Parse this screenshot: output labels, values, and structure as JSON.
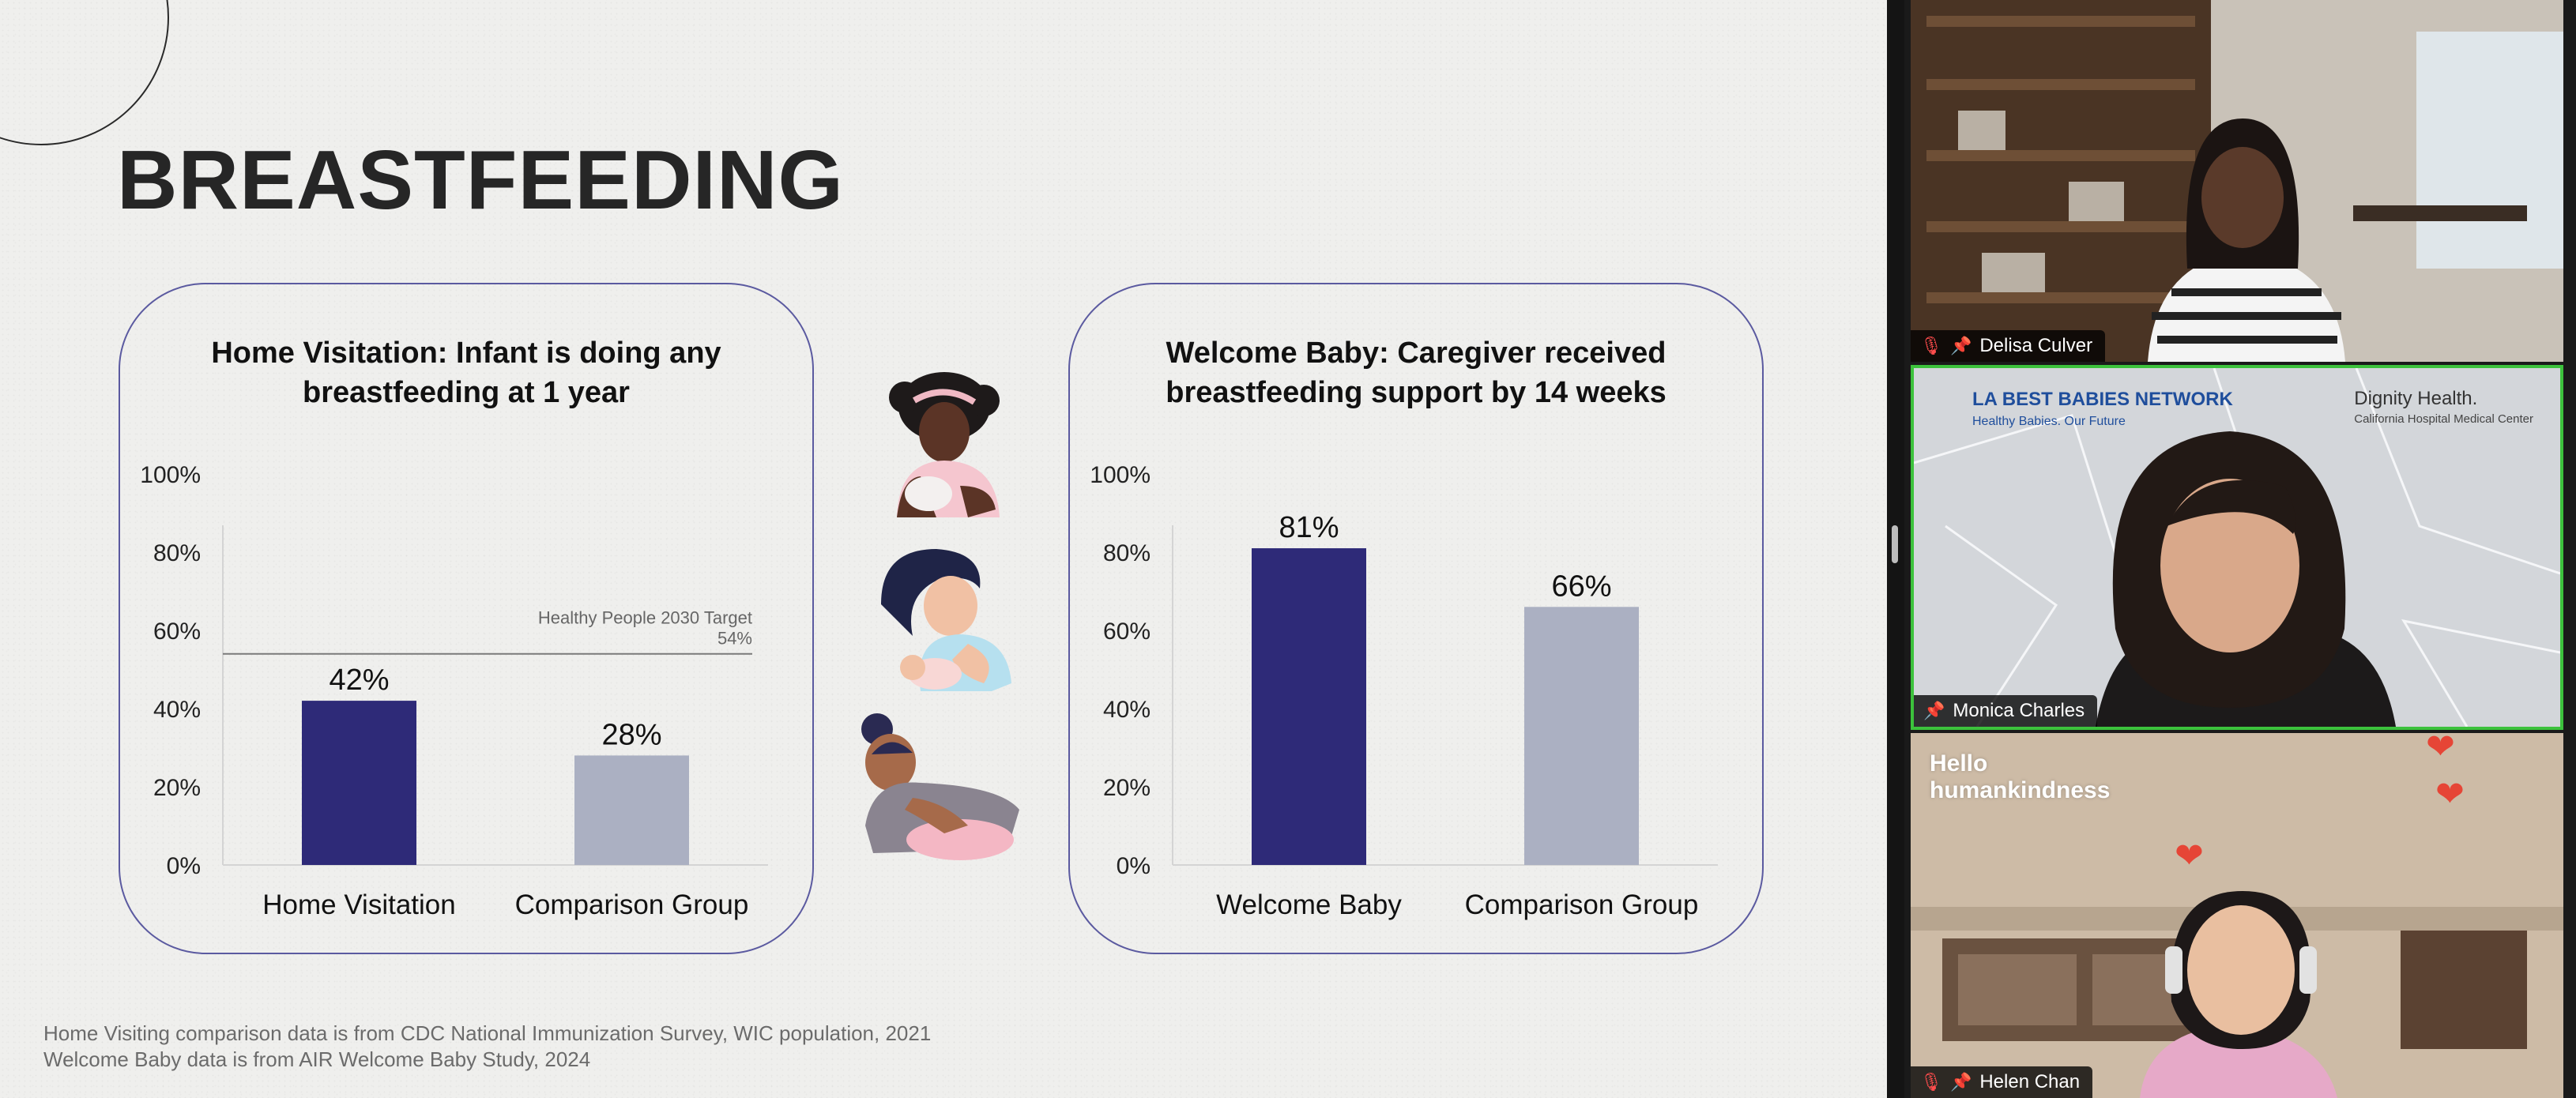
{
  "slide": {
    "title": "BREASTFEEDING",
    "footnotes": [
      "Home Visiting comparison data is from CDC National Immunization Survey, WIC population, 2021",
      "Welcome Baby data is from AIR Welcome Baby Study, 2024"
    ]
  },
  "chart_data": [
    {
      "type": "bar",
      "title": "Home Visitation: Infant is doing any breastfeeding at 1 year",
      "title_lines": [
        "Home Visitation: Infant is doing any",
        "breastfeeding at 1 year"
      ],
      "categories": [
        "Home Visitation",
        "Comparison Group"
      ],
      "values": [
        42,
        28
      ],
      "data_labels": [
        "42%",
        "28%"
      ],
      "bar_colors": [
        "#2e2a78",
        "#abb0c2"
      ],
      "ylim": [
        0,
        100
      ],
      "yticks": [
        "0%",
        "20%",
        "40%",
        "60%",
        "80%",
        "100%"
      ],
      "reference_line": {
        "value": 54,
        "label": "Healthy People 2030 Target",
        "value_label": "54%"
      }
    },
    {
      "type": "bar",
      "title": "Welcome Baby: Caregiver received breastfeeding support by 14 weeks",
      "title_lines": [
        "Welcome Baby: Caregiver received",
        "breastfeeding support by 14 weeks"
      ],
      "categories": [
        "Welcome Baby",
        "Comparison Group"
      ],
      "values": [
        81,
        66
      ],
      "data_labels": [
        "81%",
        "66%"
      ],
      "bar_colors": [
        "#2e2a78",
        "#abb0c2"
      ],
      "ylim": [
        0,
        100
      ],
      "yticks": [
        "0%",
        "20%",
        "40%",
        "60%",
        "80%",
        "100%"
      ]
    }
  ],
  "participants": [
    {
      "name": "Delisa Culver",
      "muted": true,
      "pinned": true
    },
    {
      "name": "Monica Charles",
      "muted": false,
      "pinned": true,
      "active_speaker": true,
      "background_logos": {
        "left": "LA BEST BABIES NETWORK",
        "left_tagline": "Healthy Babies. Our Future",
        "right": "Dignity Health.",
        "right_tagline": "California Hospital Medical Center"
      }
    },
    {
      "name": "Helen Chan",
      "muted": true,
      "pinned": true,
      "background_text": [
        "Hello",
        "humankindness"
      ]
    }
  ],
  "colors": {
    "accent": "#2e2a78",
    "comparison": "#abb0c2",
    "panel_border": "#5b5aa0",
    "active_speaker_border": "#3cc23c"
  }
}
